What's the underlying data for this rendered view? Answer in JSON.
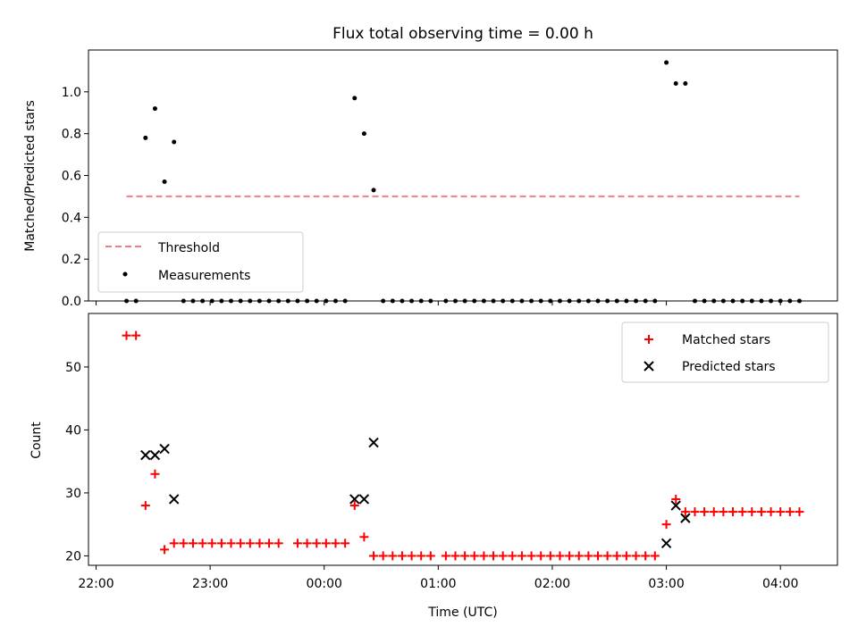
{
  "chart_data": [
    {
      "type": "scatter",
      "title": "Flux total observing time = 0.00 h",
      "ylabel": "Matched/Predicted stars",
      "xlabel": "",
      "xlim": [
        "21:56",
        "04:30"
      ],
      "ylim": [
        0,
        1.2
      ],
      "yticks": [
        "0.0",
        "0.2",
        "0.4",
        "0.6",
        "0.8",
        "1.0"
      ],
      "grid": false,
      "legend": "lower-left",
      "colors": {
        "threshold": "#f08080",
        "measurements": "#000000"
      },
      "threshold": {
        "name": "Threshold",
        "value": 0.5,
        "x": [
          "22:16",
          "04:10"
        ]
      },
      "measurements": {
        "name": "Measurements",
        "points": [
          [
            "22:16",
            0.0
          ],
          [
            "22:21",
            0.0
          ],
          [
            "22:26",
            0.78
          ],
          [
            "22:31",
            0.92
          ],
          [
            "22:36",
            0.57
          ],
          [
            "22:41",
            0.76
          ],
          [
            "22:46",
            0.0
          ],
          [
            "22:51",
            0.0
          ],
          [
            "22:56",
            0.0
          ],
          [
            "23:01",
            0.0
          ],
          [
            "23:06",
            0.0
          ],
          [
            "23:11",
            0.0
          ],
          [
            "23:16",
            0.0
          ],
          [
            "23:21",
            0.0
          ],
          [
            "23:26",
            0.0
          ],
          [
            "23:31",
            0.0
          ],
          [
            "23:36",
            0.0
          ],
          [
            "23:41",
            0.0
          ],
          [
            "23:46",
            0.0
          ],
          [
            "23:51",
            0.0
          ],
          [
            "23:56",
            0.0
          ],
          [
            "00:01",
            0.0
          ],
          [
            "00:06",
            0.0
          ],
          [
            "00:11",
            0.0
          ],
          [
            "00:16",
            0.97
          ],
          [
            "00:21",
            0.8
          ],
          [
            "00:26",
            0.53
          ],
          [
            "00:31",
            0.0
          ],
          [
            "00:36",
            0.0
          ],
          [
            "00:41",
            0.0
          ],
          [
            "00:46",
            0.0
          ],
          [
            "00:51",
            0.0
          ],
          [
            "00:56",
            0.0
          ],
          [
            "01:04",
            0.0
          ],
          [
            "01:09",
            0.0
          ],
          [
            "01:14",
            0.0
          ],
          [
            "01:19",
            0.0
          ],
          [
            "01:24",
            0.0
          ],
          [
            "01:29",
            0.0
          ],
          [
            "01:34",
            0.0
          ],
          [
            "01:39",
            0.0
          ],
          [
            "01:44",
            0.0
          ],
          [
            "01:49",
            0.0
          ],
          [
            "01:54",
            0.0
          ],
          [
            "01:59",
            0.0
          ],
          [
            "02:04",
            0.0
          ],
          [
            "02:09",
            0.0
          ],
          [
            "02:14",
            0.0
          ],
          [
            "02:19",
            0.0
          ],
          [
            "02:24",
            0.0
          ],
          [
            "02:29",
            0.0
          ],
          [
            "02:34",
            0.0
          ],
          [
            "02:39",
            0.0
          ],
          [
            "02:44",
            0.0
          ],
          [
            "02:49",
            0.0
          ],
          [
            "02:54",
            0.0
          ],
          [
            "03:00",
            1.14
          ],
          [
            "03:05",
            1.04
          ],
          [
            "03:10",
            1.04
          ],
          [
            "03:15",
            0.0
          ],
          [
            "03:20",
            0.0
          ],
          [
            "03:25",
            0.0
          ],
          [
            "03:30",
            0.0
          ],
          [
            "03:35",
            0.0
          ],
          [
            "03:40",
            0.0
          ],
          [
            "03:45",
            0.0
          ],
          [
            "03:50",
            0.0
          ],
          [
            "03:55",
            0.0
          ],
          [
            "04:00",
            0.0
          ],
          [
            "04:05",
            0.0
          ],
          [
            "04:10",
            0.0
          ]
        ]
      }
    },
    {
      "type": "scatter",
      "title": "",
      "xlabel": "Time (UTC)",
      "ylabel": "Count",
      "xlim": [
        "21:56",
        "04:30"
      ],
      "ylim": [
        18.5,
        58.5
      ],
      "yticks": [
        "20",
        "30",
        "40",
        "50"
      ],
      "xticks": [
        "22:00",
        "23:00",
        "00:00",
        "01:00",
        "02:00",
        "03:00",
        "04:00"
      ],
      "grid": false,
      "legend": "top-right",
      "colors": {
        "matched": "#ff0000",
        "predicted": "#000000"
      },
      "matched": {
        "name": "Matched stars",
        "points": [
          [
            "22:16",
            55
          ],
          [
            "22:21",
            55
          ],
          [
            "22:26",
            28
          ],
          [
            "22:31",
            33
          ],
          [
            "22:36",
            21
          ],
          [
            "22:41",
            22
          ],
          [
            "22:46",
            22
          ],
          [
            "22:51",
            22
          ],
          [
            "22:56",
            22
          ],
          [
            "23:01",
            22
          ],
          [
            "23:06",
            22
          ],
          [
            "23:11",
            22
          ],
          [
            "23:16",
            22
          ],
          [
            "23:21",
            22
          ],
          [
            "23:26",
            22
          ],
          [
            "23:31",
            22
          ],
          [
            "23:36",
            22
          ],
          [
            "23:46",
            22
          ],
          [
            "23:51",
            22
          ],
          [
            "23:56",
            22
          ],
          [
            "00:01",
            22
          ],
          [
            "00:06",
            22
          ],
          [
            "00:11",
            22
          ],
          [
            "00:16",
            28
          ],
          [
            "00:21",
            23
          ],
          [
            "00:26",
            20
          ],
          [
            "00:31",
            20
          ],
          [
            "00:36",
            20
          ],
          [
            "00:41",
            20
          ],
          [
            "00:46",
            20
          ],
          [
            "00:51",
            20
          ],
          [
            "00:56",
            20
          ],
          [
            "01:04",
            20
          ],
          [
            "01:09",
            20
          ],
          [
            "01:14",
            20
          ],
          [
            "01:19",
            20
          ],
          [
            "01:24",
            20
          ],
          [
            "01:29",
            20
          ],
          [
            "01:34",
            20
          ],
          [
            "01:39",
            20
          ],
          [
            "01:44",
            20
          ],
          [
            "01:49",
            20
          ],
          [
            "01:54",
            20
          ],
          [
            "01:59",
            20
          ],
          [
            "02:04",
            20
          ],
          [
            "02:09",
            20
          ],
          [
            "02:14",
            20
          ],
          [
            "02:19",
            20
          ],
          [
            "02:24",
            20
          ],
          [
            "02:29",
            20
          ],
          [
            "02:34",
            20
          ],
          [
            "02:39",
            20
          ],
          [
            "02:44",
            20
          ],
          [
            "02:49",
            20
          ],
          [
            "02:54",
            20
          ],
          [
            "03:00",
            25
          ],
          [
            "03:05",
            29
          ],
          [
            "03:10",
            27
          ],
          [
            "03:15",
            27
          ],
          [
            "03:20",
            27
          ],
          [
            "03:25",
            27
          ],
          [
            "03:30",
            27
          ],
          [
            "03:35",
            27
          ],
          [
            "03:40",
            27
          ],
          [
            "03:45",
            27
          ],
          [
            "03:50",
            27
          ],
          [
            "03:55",
            27
          ],
          [
            "04:00",
            27
          ],
          [
            "04:05",
            27
          ],
          [
            "04:10",
            27
          ]
        ]
      },
      "predicted": {
        "name": "Predicted stars",
        "points": [
          [
            "22:26",
            36
          ],
          [
            "22:31",
            36
          ],
          [
            "22:36",
            37
          ],
          [
            "22:41",
            29
          ],
          [
            "00:16",
            29
          ],
          [
            "00:21",
            29
          ],
          [
            "00:26",
            38
          ],
          [
            "03:00",
            22
          ],
          [
            "03:05",
            28
          ],
          [
            "03:10",
            26
          ]
        ]
      }
    }
  ]
}
